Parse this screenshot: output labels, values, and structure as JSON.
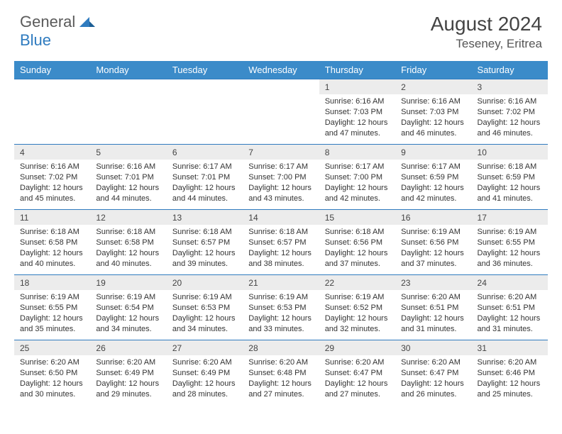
{
  "brand": {
    "part1": "General",
    "part2": "Blue"
  },
  "title": "August 2024",
  "location": "Teseney, Eritrea",
  "colors": {
    "header_bg": "#3b8bc9",
    "header_text": "#ffffff",
    "border": "#2f7bbf",
    "daynum_bg": "#ececec",
    "body_text": "#333333",
    "logo_gray": "#5a5a5a",
    "logo_blue": "#2f7bbf"
  },
  "typography": {
    "title_fontsize": 28,
    "location_fontsize": 17,
    "header_fontsize": 13,
    "daynum_fontsize": 12,
    "cell_fontsize": 11
  },
  "day_headers": [
    "Sunday",
    "Monday",
    "Tuesday",
    "Wednesday",
    "Thursday",
    "Friday",
    "Saturday"
  ],
  "weeks": [
    [
      {
        "n": "",
        "sr": "",
        "ss": "",
        "dl": ""
      },
      {
        "n": "",
        "sr": "",
        "ss": "",
        "dl": ""
      },
      {
        "n": "",
        "sr": "",
        "ss": "",
        "dl": ""
      },
      {
        "n": "",
        "sr": "",
        "ss": "",
        "dl": ""
      },
      {
        "n": "1",
        "sr": "Sunrise: 6:16 AM",
        "ss": "Sunset: 7:03 PM",
        "dl": "Daylight: 12 hours and 47 minutes."
      },
      {
        "n": "2",
        "sr": "Sunrise: 6:16 AM",
        "ss": "Sunset: 7:03 PM",
        "dl": "Daylight: 12 hours and 46 minutes."
      },
      {
        "n": "3",
        "sr": "Sunrise: 6:16 AM",
        "ss": "Sunset: 7:02 PM",
        "dl": "Daylight: 12 hours and 46 minutes."
      }
    ],
    [
      {
        "n": "4",
        "sr": "Sunrise: 6:16 AM",
        "ss": "Sunset: 7:02 PM",
        "dl": "Daylight: 12 hours and 45 minutes."
      },
      {
        "n": "5",
        "sr": "Sunrise: 6:16 AM",
        "ss": "Sunset: 7:01 PM",
        "dl": "Daylight: 12 hours and 44 minutes."
      },
      {
        "n": "6",
        "sr": "Sunrise: 6:17 AM",
        "ss": "Sunset: 7:01 PM",
        "dl": "Daylight: 12 hours and 44 minutes."
      },
      {
        "n": "7",
        "sr": "Sunrise: 6:17 AM",
        "ss": "Sunset: 7:00 PM",
        "dl": "Daylight: 12 hours and 43 minutes."
      },
      {
        "n": "8",
        "sr": "Sunrise: 6:17 AM",
        "ss": "Sunset: 7:00 PM",
        "dl": "Daylight: 12 hours and 42 minutes."
      },
      {
        "n": "9",
        "sr": "Sunrise: 6:17 AM",
        "ss": "Sunset: 6:59 PM",
        "dl": "Daylight: 12 hours and 42 minutes."
      },
      {
        "n": "10",
        "sr": "Sunrise: 6:18 AM",
        "ss": "Sunset: 6:59 PM",
        "dl": "Daylight: 12 hours and 41 minutes."
      }
    ],
    [
      {
        "n": "11",
        "sr": "Sunrise: 6:18 AM",
        "ss": "Sunset: 6:58 PM",
        "dl": "Daylight: 12 hours and 40 minutes."
      },
      {
        "n": "12",
        "sr": "Sunrise: 6:18 AM",
        "ss": "Sunset: 6:58 PM",
        "dl": "Daylight: 12 hours and 40 minutes."
      },
      {
        "n": "13",
        "sr": "Sunrise: 6:18 AM",
        "ss": "Sunset: 6:57 PM",
        "dl": "Daylight: 12 hours and 39 minutes."
      },
      {
        "n": "14",
        "sr": "Sunrise: 6:18 AM",
        "ss": "Sunset: 6:57 PM",
        "dl": "Daylight: 12 hours and 38 minutes."
      },
      {
        "n": "15",
        "sr": "Sunrise: 6:18 AM",
        "ss": "Sunset: 6:56 PM",
        "dl": "Daylight: 12 hours and 37 minutes."
      },
      {
        "n": "16",
        "sr": "Sunrise: 6:19 AM",
        "ss": "Sunset: 6:56 PM",
        "dl": "Daylight: 12 hours and 37 minutes."
      },
      {
        "n": "17",
        "sr": "Sunrise: 6:19 AM",
        "ss": "Sunset: 6:55 PM",
        "dl": "Daylight: 12 hours and 36 minutes."
      }
    ],
    [
      {
        "n": "18",
        "sr": "Sunrise: 6:19 AM",
        "ss": "Sunset: 6:55 PM",
        "dl": "Daylight: 12 hours and 35 minutes."
      },
      {
        "n": "19",
        "sr": "Sunrise: 6:19 AM",
        "ss": "Sunset: 6:54 PM",
        "dl": "Daylight: 12 hours and 34 minutes."
      },
      {
        "n": "20",
        "sr": "Sunrise: 6:19 AM",
        "ss": "Sunset: 6:53 PM",
        "dl": "Daylight: 12 hours and 34 minutes."
      },
      {
        "n": "21",
        "sr": "Sunrise: 6:19 AM",
        "ss": "Sunset: 6:53 PM",
        "dl": "Daylight: 12 hours and 33 minutes."
      },
      {
        "n": "22",
        "sr": "Sunrise: 6:19 AM",
        "ss": "Sunset: 6:52 PM",
        "dl": "Daylight: 12 hours and 32 minutes."
      },
      {
        "n": "23",
        "sr": "Sunrise: 6:20 AM",
        "ss": "Sunset: 6:51 PM",
        "dl": "Daylight: 12 hours and 31 minutes."
      },
      {
        "n": "24",
        "sr": "Sunrise: 6:20 AM",
        "ss": "Sunset: 6:51 PM",
        "dl": "Daylight: 12 hours and 31 minutes."
      }
    ],
    [
      {
        "n": "25",
        "sr": "Sunrise: 6:20 AM",
        "ss": "Sunset: 6:50 PM",
        "dl": "Daylight: 12 hours and 30 minutes."
      },
      {
        "n": "26",
        "sr": "Sunrise: 6:20 AM",
        "ss": "Sunset: 6:49 PM",
        "dl": "Daylight: 12 hours and 29 minutes."
      },
      {
        "n": "27",
        "sr": "Sunrise: 6:20 AM",
        "ss": "Sunset: 6:49 PM",
        "dl": "Daylight: 12 hours and 28 minutes."
      },
      {
        "n": "28",
        "sr": "Sunrise: 6:20 AM",
        "ss": "Sunset: 6:48 PM",
        "dl": "Daylight: 12 hours and 27 minutes."
      },
      {
        "n": "29",
        "sr": "Sunrise: 6:20 AM",
        "ss": "Sunset: 6:47 PM",
        "dl": "Daylight: 12 hours and 27 minutes."
      },
      {
        "n": "30",
        "sr": "Sunrise: 6:20 AM",
        "ss": "Sunset: 6:47 PM",
        "dl": "Daylight: 12 hours and 26 minutes."
      },
      {
        "n": "31",
        "sr": "Sunrise: 6:20 AM",
        "ss": "Sunset: 6:46 PM",
        "dl": "Daylight: 12 hours and 25 minutes."
      }
    ]
  ]
}
